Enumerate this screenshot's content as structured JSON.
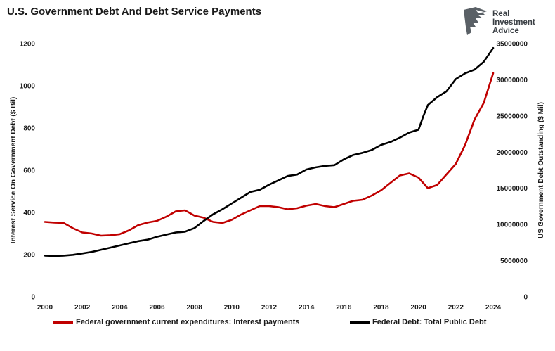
{
  "title": "U.S. Government Debt And Debt Service Payments",
  "logo": {
    "line1": "Real",
    "line2": "Investment",
    "line3": "Advice"
  },
  "colors": {
    "interest": "#c00000",
    "debt": "#000000"
  },
  "chart_data": {
    "type": "line",
    "title": "U.S. Government Debt And Debt Service Payments",
    "xlabel": "",
    "x_ticks": [
      "2000",
      "2002",
      "2004",
      "2006",
      "2008",
      "2010",
      "2012",
      "2014",
      "2016",
      "2018",
      "2020",
      "2022",
      "2024"
    ],
    "xlim": [
      2000,
      2024
    ],
    "y_left": {
      "label": "Interest Service On Government Debt ($ Bil)",
      "lim": [
        0,
        1200
      ],
      "ticks": [
        "0",
        "200",
        "400",
        "600",
        "800",
        "1000",
        "1200"
      ]
    },
    "y_right": {
      "label": "US Government Debt Outstanding ($ Mil)",
      "lim": [
        0,
        35000000
      ],
      "ticks": [
        "0",
        "5000000",
        "10000000",
        "15000000",
        "20000000",
        "25000000",
        "30000000",
        "35000000"
      ]
    },
    "legend_position": "bottom",
    "grid": false,
    "series": [
      {
        "name": "Federal government current expenditures: Interest payments",
        "axis": "left",
        "x": [
          2000,
          2000.5,
          2001,
          2001.5,
          2002,
          2002.5,
          2003,
          2003.5,
          2004,
          2004.5,
          2005,
          2005.5,
          2006,
          2006.5,
          2007,
          2007.5,
          2008,
          2008.5,
          2009,
          2009.5,
          2010,
          2010.5,
          2011,
          2011.5,
          2012,
          2012.5,
          2013,
          2013.5,
          2014,
          2014.5,
          2015,
          2015.5,
          2016,
          2016.5,
          2017,
          2017.5,
          2018,
          2018.5,
          2019,
          2019.5,
          2020,
          2020.25,
          2020.5,
          2021,
          2021.5,
          2022,
          2022.5,
          2023,
          2023.5,
          2024
        ],
        "y": [
          355,
          352,
          350,
          325,
          305,
          300,
          290,
          292,
          297,
          315,
          340,
          352,
          360,
          380,
          405,
          410,
          385,
          375,
          355,
          350,
          365,
          390,
          410,
          430,
          430,
          425,
          415,
          420,
          432,
          440,
          430,
          425,
          440,
          455,
          460,
          480,
          505,
          540,
          575,
          585,
          565,
          540,
          515,
          530,
          580,
          630,
          720,
          840,
          920,
          1060
        ]
      },
      {
        "name": "Federal Debt: Total Public Debt",
        "axis": "right",
        "x": [
          2000,
          2000.5,
          2001,
          2001.5,
          2002,
          2002.5,
          2003,
          2003.5,
          2004,
          2004.5,
          2005,
          2005.5,
          2006,
          2006.5,
          2007,
          2007.5,
          2008,
          2008.5,
          2009,
          2009.5,
          2010,
          2010.5,
          2011,
          2011.5,
          2012,
          2012.5,
          2013,
          2013.5,
          2014,
          2014.5,
          2015,
          2015.5,
          2016,
          2016.5,
          2017,
          2017.5,
          2018,
          2018.5,
          2019,
          2019.5,
          2020,
          2020.25,
          2020.5,
          2021,
          2021.5,
          2022,
          2022.5,
          2023,
          2023.5,
          2024
        ],
        "y": [
          5700000,
          5650000,
          5700000,
          5800000,
          6000000,
          6200000,
          6500000,
          6800000,
          7100000,
          7400000,
          7700000,
          7900000,
          8300000,
          8600000,
          8900000,
          9000000,
          9500000,
          10500000,
          11400000,
          12100000,
          12900000,
          13700000,
          14500000,
          14800000,
          15500000,
          16100000,
          16700000,
          16900000,
          17600000,
          17900000,
          18100000,
          18200000,
          19000000,
          19600000,
          19900000,
          20300000,
          21000000,
          21400000,
          22000000,
          22700000,
          23100000,
          24900000,
          26500000,
          27600000,
          28400000,
          30100000,
          30900000,
          31400000,
          32500000,
          34400000
        ]
      }
    ]
  }
}
